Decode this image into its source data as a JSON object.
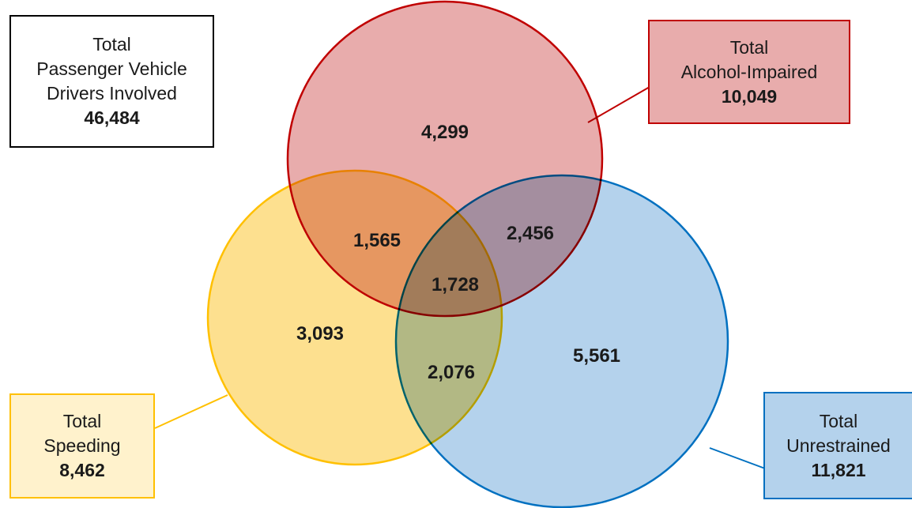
{
  "total_box": {
    "line1": "Total",
    "line2": "Passenger Vehicle",
    "line3": "Drivers Involved",
    "value": "46,484",
    "border_color": "#000000"
  },
  "alcohol": {
    "line1": "Total",
    "line2": "Alcohol-Impaired",
    "value": "10,049",
    "fill_color": "#e8acac",
    "border_color": "#c00000"
  },
  "speeding": {
    "line1": "Total",
    "line2": "Speeding",
    "value": "8,462",
    "fill_color": "#fde08f",
    "box_fill_color": "#fff2cc",
    "border_color": "#ffc000"
  },
  "unrestrained": {
    "line1": "Total",
    "line2": "Unrestrained",
    "value": "11,821",
    "fill_color": "#b4d2ec",
    "border_color": "#0070c0"
  },
  "regions": {
    "alcohol_only": "4,299",
    "speeding_only": "3,093",
    "unrestrained_only": "5,561",
    "alcohol_speeding": "1,565",
    "alcohol_unrestrained": "2,456",
    "speeding_unrestrained": "2,076",
    "all_three": "1,728"
  }
}
